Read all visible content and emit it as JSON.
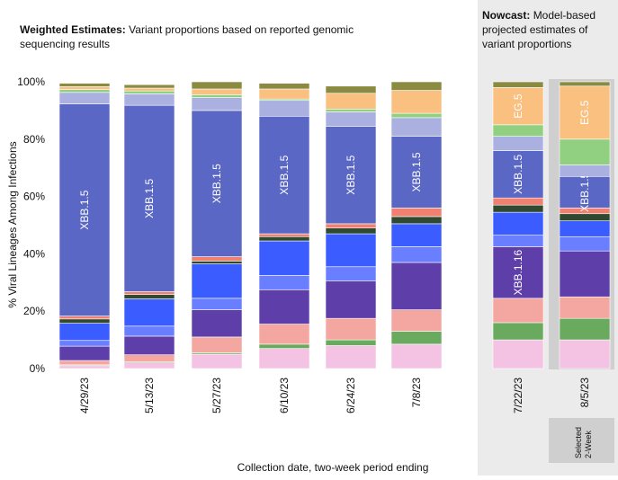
{
  "chart_data": {
    "type": "stacked_bar",
    "title_bold": "Weighted Estimates:",
    "title_lines": [
      "Variant proportions based on reported genomic",
      "sequencing results"
    ],
    "nowcast": {
      "title_bold": "Nowcast:",
      "title_lines": [
        "Model-based",
        "projected estimates of",
        "variant proportions"
      ],
      "first_index": 6
    },
    "selected": {
      "index": 7,
      "label_lines": [
        "Selected",
        "2-Week"
      ]
    },
    "ylabel": "% Viral Lineages Among Infections",
    "xlabel": "Collection date, two-week period ending",
    "categories": [
      "4/29/23",
      "5/13/23",
      "5/27/23",
      "6/10/23",
      "6/24/23",
      "7/8/23",
      "7/22/23",
      "8/5/23"
    ],
    "ylim": [
      0,
      100
    ],
    "yticks": [
      {
        "value": 0,
        "label": "0%"
      },
      {
        "value": 20,
        "label": "20%"
      },
      {
        "value": 40,
        "label": "40%"
      },
      {
        "value": 60,
        "label": "60%"
      },
      {
        "value": 80,
        "label": "80%"
      },
      {
        "value": 100,
        "label": "100%"
      }
    ],
    "series": [
      {
        "color": "#f4c2e2",
        "values": [
          1,
          2,
          5,
          7,
          8,
          8.5,
          10,
          10
        ]
      },
      {
        "color": "#6aaa5e",
        "values": [
          0.3,
          0.3,
          0.5,
          1.5,
          2,
          4.5,
          6,
          7.5
        ]
      },
      {
        "color": "#f4a6a0",
        "values": [
          1.5,
          2.5,
          5.5,
          7,
          7.5,
          7.5,
          8.5,
          7.5
        ]
      },
      {
        "name": "XBB.1.16",
        "color": "#5e3ea8",
        "values": [
          5,
          6.5,
          9.5,
          12,
          13,
          16.5,
          18,
          16
        ],
        "labeled": [
          6
        ]
      },
      {
        "color": "#6a7fff",
        "values": [
          2,
          3.5,
          4,
          5,
          5,
          5.5,
          4,
          5
        ]
      },
      {
        "color": "#3b5cff",
        "values": [
          6,
          9.5,
          12,
          12,
          11.5,
          8,
          8,
          5.5
        ]
      },
      {
        "color": "#2f4a30",
        "values": [
          1.5,
          1.5,
          1,
          1.5,
          2,
          2.5,
          2.5,
          2.5
        ]
      },
      {
        "color": "#f08070",
        "values": [
          1,
          1,
          1.5,
          1,
          1.5,
          3,
          2.5,
          2
        ]
      },
      {
        "name": "XBB.1.5",
        "color": "#5a67c4",
        "values": [
          74,
          65,
          51,
          41,
          34,
          25,
          16.5,
          11
        ],
        "labeled": [
          0,
          1,
          2,
          3,
          4,
          5,
          6,
          7
        ]
      },
      {
        "color": "#aab0e0",
        "values": [
          4,
          4,
          4.5,
          5.5,
          5,
          6.5,
          5,
          4
        ]
      },
      {
        "color": "#90d080",
        "values": [
          1,
          1,
          1,
          0.5,
          1,
          1.5,
          4,
          9
        ]
      },
      {
        "name": "EG.5",
        "color": "#f9c080",
        "values": [
          1,
          1,
          2,
          3.5,
          5.5,
          8,
          13,
          18.5
        ],
        "labeled": [
          6,
          7
        ]
      },
      {
        "color": "#8a8a40",
        "values": [
          1.2,
          1.2,
          2.5,
          2,
          2.5,
          3,
          2,
          1.5
        ]
      }
    ]
  }
}
